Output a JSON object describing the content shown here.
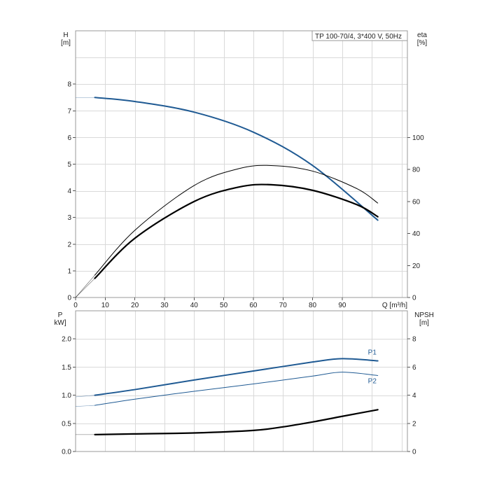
{
  "legend_title": "TP 100-70/4, 3*400 V, 50Hz",
  "colors": {
    "blue": "#1f5a93",
    "black": "#000000",
    "grid": "#d9d9d9",
    "frame": "#999999"
  },
  "chart_data": [
    {
      "type": "line",
      "name": "head-efficiency",
      "xlabel": "Q [m³/h]",
      "ylabel": "H\n[m]",
      "y2label": "eta\n[%]",
      "xlim": [
        0,
        112
      ],
      "ylim": [
        0,
        10
      ],
      "y2lim": [
        0,
        166.7
      ],
      "x_ticks": [
        0,
        10,
        20,
        30,
        40,
        50,
        60,
        70,
        80,
        90
      ],
      "y_ticks": [
        0,
        1,
        2,
        3,
        4,
        5,
        6,
        7,
        8
      ],
      "y2_ticks": [
        0,
        20,
        40,
        60,
        80,
        100
      ],
      "grid": true,
      "series": [
        {
          "key": "H",
          "axis": "left",
          "color": "#1f5a93",
          "width": 2,
          "x": [
            0,
            6.5,
            20,
            40,
            60,
            80,
            102
          ],
          "y": [
            7.5,
            7.5,
            7.35,
            6.95,
            6.2,
            4.95,
            2.9
          ]
        },
        {
          "key": "eta_thin",
          "axis": "right",
          "color": "#000000",
          "width": 1,
          "x": [
            0,
            6.5,
            20,
            40,
            55,
            66,
            80,
            95,
            102
          ],
          "y": [
            0,
            14,
            42,
            70,
            80.5,
            82.5,
            79,
            68,
            59
          ]
        },
        {
          "key": "eta_thick",
          "axis": "right",
          "color": "#000000",
          "width": 2.2,
          "x": [
            0,
            6.5,
            20,
            40,
            55,
            66,
            80,
            95,
            102
          ],
          "y": [
            0,
            12,
            37,
            60,
            69,
            70.5,
            67,
            58,
            50.5
          ]
        }
      ]
    },
    {
      "type": "line",
      "name": "power-npsh",
      "xlabel": "",
      "ylabel": "P\nkW]",
      "y2label": "NPSH\n[m]",
      "xlim": [
        0,
        112
      ],
      "ylim": [
        0,
        2.5
      ],
      "y2lim": [
        0,
        10
      ],
      "y_ticks": [
        0.0,
        0.5,
        1.0,
        1.5,
        2.0
      ],
      "y_tick_labels": [
        "0.0",
        "0.5",
        "1.0",
        "1.5",
        "2.0"
      ],
      "y2_ticks": [
        0,
        2,
        4,
        6,
        8
      ],
      "grid": true,
      "series": [
        {
          "key": "P1",
          "name": "P1",
          "axis": "left",
          "color": "#1f5a93",
          "width": 2,
          "x": [
            0,
            6.5,
            20,
            40,
            60,
            80,
            90,
            102
          ],
          "y": [
            0.97,
            1.0,
            1.1,
            1.27,
            1.43,
            1.59,
            1.65,
            1.61
          ]
        },
        {
          "key": "P2",
          "name": "P2",
          "axis": "left",
          "color": "#1f5a93",
          "width": 1,
          "x": [
            0,
            6.5,
            20,
            40,
            60,
            80,
            90,
            102
          ],
          "y": [
            0.8,
            0.82,
            0.93,
            1.07,
            1.2,
            1.34,
            1.41,
            1.35
          ]
        },
        {
          "key": "NPSH",
          "axis": "right",
          "color": "#000000",
          "width": 2.2,
          "x": [
            0,
            6.5,
            20,
            40,
            60,
            70,
            80,
            90,
            102
          ],
          "y": [
            1.2,
            1.2,
            1.25,
            1.32,
            1.5,
            1.75,
            2.1,
            2.5,
            2.97
          ]
        }
      ]
    }
  ]
}
